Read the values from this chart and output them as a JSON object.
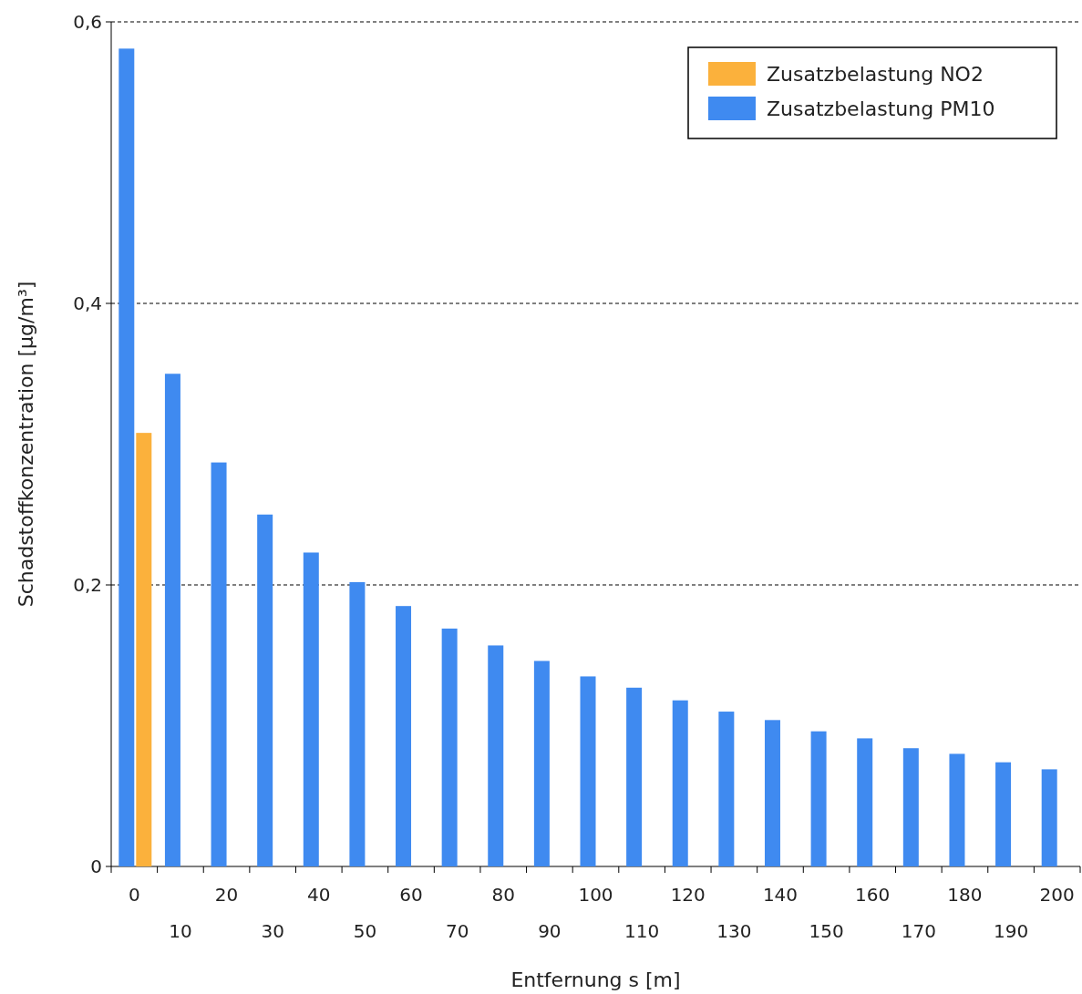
{
  "chart_data": {
    "type": "bar",
    "xlabel": "Entfernung s [m]",
    "ylabel": "Schadstoffkonzentration [µg/m³]",
    "categories": [
      "0",
      "10",
      "20",
      "30",
      "40",
      "50",
      "60",
      "70",
      "80",
      "90",
      "100",
      "110",
      "120",
      "130",
      "140",
      "150",
      "160",
      "170",
      "180",
      "190",
      "200"
    ],
    "series": [
      {
        "name": "Zusatzbelastung PM10",
        "color": "#3f8af0",
        "values": [
          0.581,
          0.35,
          0.287,
          0.25,
          0.223,
          0.202,
          0.185,
          0.169,
          0.157,
          0.146,
          0.135,
          0.127,
          0.118,
          0.11,
          0.104,
          0.096,
          0.091,
          0.084,
          0.08,
          0.074,
          0.069
        ]
      },
      {
        "name": "Zusatzbelastung NO2",
        "color": "#fbb13c",
        "values": [
          0.308,
          null,
          null,
          null,
          null,
          null,
          null,
          null,
          null,
          null,
          null,
          null,
          null,
          null,
          null,
          null,
          null,
          null,
          null,
          null,
          null
        ]
      }
    ],
    "ylim": [
      0,
      0.6
    ],
    "yticks": [
      0,
      {
        "value": 0.2,
        "label": "0,2"
      },
      {
        "value": 0.4,
        "label": "0,4"
      },
      {
        "value": 0.6,
        "label": "0,6"
      }
    ],
    "grid": "y",
    "legend": "top right"
  }
}
